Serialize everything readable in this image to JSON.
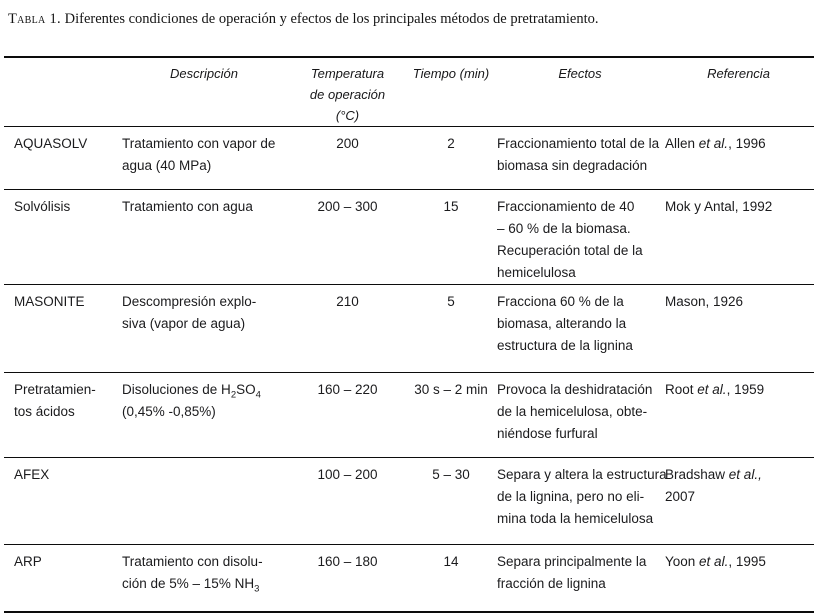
{
  "title": {
    "label": "Tabla 1.",
    "text": " Diferentes condiciones de operación y efectos de los principales métodos de pretratamiento."
  },
  "table": {
    "headers": {
      "method": "",
      "description": "Descripción",
      "temperature": "Temperatura\nde operación\n(°C)",
      "time": "Tiempo (min)",
      "effects": "Efectos",
      "reference": "Referencia"
    },
    "rows": [
      {
        "method": "AQUASOLV",
        "description": "Tratamiento con vapor de\nagua (40 MPa)",
        "temperature": "200",
        "time": "2",
        "effects": "Fraccionamiento total de la\nbiomasa sin degradación",
        "reference": [
          {
            "t": "Allen "
          },
          {
            "t": "et al.",
            "s": "i"
          },
          {
            "t": ", 1996"
          }
        ]
      },
      {
        "method": "Solvólisis",
        "description": "Tratamiento con agua",
        "temperature": "200 – 300",
        "time": "15",
        "effects": "Fraccionamiento de 40\n– 60 % de la biomasa.\nRecuperación total de la\nhemicelulosa",
        "reference": "Mok y Antal, 1992"
      },
      {
        "method": "MASONITE",
        "description": "Descompresión explo-\nsiva (vapor de agua)",
        "temperature": "210",
        "time": "5",
        "effects": "Fracciona 60 % de la\nbiomasa, alterando la\nestructura de la lignina",
        "reference": "Mason, 1926"
      },
      {
        "method": "Pretratamien-\ntos ácidos",
        "description": [
          {
            "t": "Disoluciones de H"
          },
          {
            "t": "2",
            "s": "sub"
          },
          {
            "t": "SO"
          },
          {
            "t": "4",
            "s": "sub"
          },
          {
            "br": true
          },
          {
            "t": "(0,45% -0,85%)"
          }
        ],
        "temperature": "160 – 220",
        "time": "30 s – 2 min",
        "effects": "Provoca la deshidratación\nde la hemicelulosa, obte-\nniéndose furfural",
        "reference": [
          {
            "t": "Root "
          },
          {
            "t": "et al.",
            "s": "i"
          },
          {
            "t": ", 1959"
          }
        ]
      },
      {
        "method": "AFEX",
        "description": "",
        "temperature": "100 – 200",
        "time": "5 – 30",
        "effects": "Separa y altera la estructura\nde la lignina, pero no eli-\nmina toda la hemicelulosa",
        "reference": [
          {
            "t": "Bradshaw "
          },
          {
            "t": "et al.,",
            "s": "i"
          },
          {
            "br": true
          },
          {
            "t": "2007"
          }
        ]
      },
      {
        "method": "ARP",
        "description": [
          {
            "t": "Tratamiento con disolu-"
          },
          {
            "br": true
          },
          {
            "t": "ción de 5% – 15% NH"
          },
          {
            "t": "3",
            "s": "sub"
          }
        ],
        "temperature": "160 – 180",
        "time": "14",
        "effects": "Separa principalmente la\nfracción de lignina",
        "reference": [
          {
            "t": "Yoon "
          },
          {
            "t": "et al.",
            "s": "i"
          },
          {
            "t": ", 1995"
          }
        ]
      }
    ]
  }
}
